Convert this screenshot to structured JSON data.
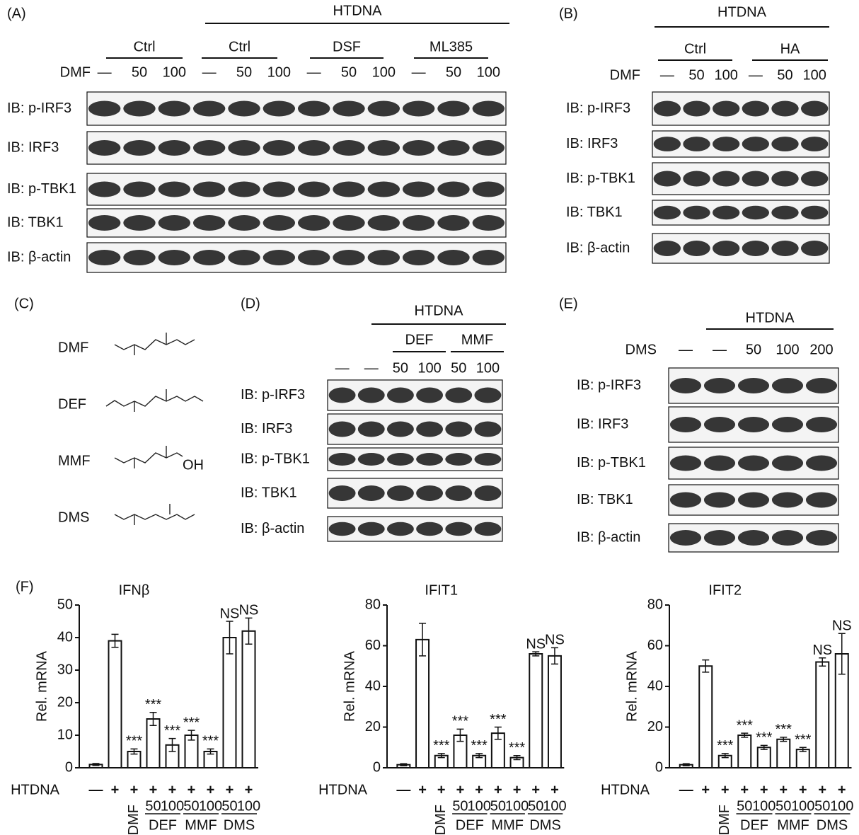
{
  "panel_a": {
    "label": "(A)",
    "group_label": "HTDNA",
    "conditions": [
      "Ctrl",
      "Ctrl",
      "DSF",
      "ML385"
    ],
    "treatment": "DMF",
    "lanes": [
      "—",
      "50",
      "100",
      "—",
      "50",
      "100",
      "—",
      "50",
      "100",
      "—",
      "50",
      "100"
    ],
    "blots": [
      "IB: p-IRF3",
      "IB: IRF3",
      "IB: p-TBK1",
      "IB: TBK1",
      "IB: β-actin"
    ]
  },
  "panel_b": {
    "label": "(B)",
    "group_label": "HTDNA",
    "conditions": [
      "Ctrl",
      "HA"
    ],
    "treatment": "DMF",
    "lanes": [
      "—",
      "50",
      "100",
      "—",
      "50",
      "100"
    ],
    "blots": [
      "IB: p-IRF3",
      "IB: IRF3",
      "IB: p-TBK1",
      "IB: TBK1",
      "IB: β-actin"
    ]
  },
  "panel_c": {
    "label": "(C)",
    "compounds": [
      "DMF",
      "DEF",
      "MMF",
      "DMS"
    ],
    "atom_label": "OH"
  },
  "panel_d": {
    "label": "(D)",
    "group_label": "HTDNA",
    "conditions": [
      "DEF",
      "MMF"
    ],
    "lanes": [
      "—",
      "—",
      "50",
      "100",
      "50",
      "100"
    ],
    "blots": [
      "IB: p-IRF3",
      "IB: IRF3",
      "IB: p-TBK1",
      "IB: TBK1",
      "IB: β-actin"
    ]
  },
  "panel_e": {
    "label": "(E)",
    "group_label": "HTDNA",
    "treatment": "DMS",
    "lanes": [
      "—",
      "—",
      "50",
      "100",
      "200"
    ],
    "blots": [
      "IB: p-IRF3",
      "IB: IRF3",
      "IB: p-TBK1",
      "IB: TBK1",
      "IB: β-actin"
    ]
  },
  "panel_f": {
    "label": "(F)",
    "charts": [
      {
        "type": "bar",
        "title": "IFNβ",
        "y_label": "Rel. mRNA",
        "x_label": "HTDNA",
        "categories": [
          "—",
          "+",
          "+",
          "+",
          "+",
          "+",
          "+",
          "+",
          "+"
        ],
        "values": [
          1,
          39,
          5,
          15,
          7,
          10,
          5,
          40,
          42
        ],
        "errors": [
          0.3,
          2,
          0.8,
          2,
          2,
          1.5,
          0.8,
          5,
          4
        ],
        "annotations": [
          null,
          null,
          "***",
          "***",
          "***",
          "***",
          "***",
          "NS",
          "NS"
        ],
        "groups": [
          {
            "label": "DMF"
          },
          {
            "label": "DEF",
            "doses": [
              "50",
              "100"
            ]
          },
          {
            "label": "MMF",
            "doses": [
              "50",
              "100"
            ]
          },
          {
            "label": "DMS",
            "doses": [
              "50",
              "100"
            ]
          }
        ],
        "ylim": [
          0,
          50
        ],
        "yticks": [
          0,
          10,
          20,
          30,
          40,
          50
        ]
      },
      {
        "type": "bar",
        "title": "IFIT1",
        "y_label": "Rel. mRNA",
        "x_label": "HTDNA",
        "categories": [
          "—",
          "+",
          "+",
          "+",
          "+",
          "+",
          "+",
          "+",
          "+"
        ],
        "values": [
          1.5,
          63,
          6,
          16,
          6,
          17,
          5,
          56,
          55
        ],
        "errors": [
          0.5,
          8,
          1,
          3,
          1,
          3,
          1,
          1,
          4
        ],
        "annotations": [
          null,
          null,
          "***",
          "***",
          "***",
          "***",
          "***",
          "NS",
          "NS"
        ],
        "groups": [
          {
            "label": "DMF"
          },
          {
            "label": "DEF",
            "doses": [
              "50",
              "100"
            ]
          },
          {
            "label": "MMF",
            "doses": [
              "50",
              "100"
            ]
          },
          {
            "label": "DMS",
            "doses": [
              "50",
              "100"
            ]
          }
        ],
        "ylim": [
          0,
          80
        ],
        "yticks": [
          0,
          20,
          40,
          60,
          80
        ]
      },
      {
        "type": "bar",
        "title": "IFIT2",
        "y_label": "Rel. mRNA",
        "x_label": "HTDNA",
        "categories": [
          "—",
          "+",
          "+",
          "+",
          "+",
          "+",
          "+",
          "+",
          "+"
        ],
        "values": [
          1.5,
          50,
          6,
          16,
          10,
          14,
          9,
          52,
          56
        ],
        "errors": [
          0.5,
          3,
          1,
          1,
          1,
          1,
          1,
          2,
          10
        ],
        "annotations": [
          null,
          null,
          "***",
          "***",
          "***",
          "***",
          "***",
          "NS",
          "NS"
        ],
        "groups": [
          {
            "label": "DMF"
          },
          {
            "label": "DEF",
            "doses": [
              "50",
              "100"
            ]
          },
          {
            "label": "MMF",
            "doses": [
              "50",
              "100"
            ]
          },
          {
            "label": "DMS",
            "doses": [
              "50",
              "100"
            ]
          }
        ],
        "ylim": [
          0,
          80
        ],
        "yticks": [
          0,
          20,
          40,
          60,
          80
        ]
      }
    ]
  }
}
